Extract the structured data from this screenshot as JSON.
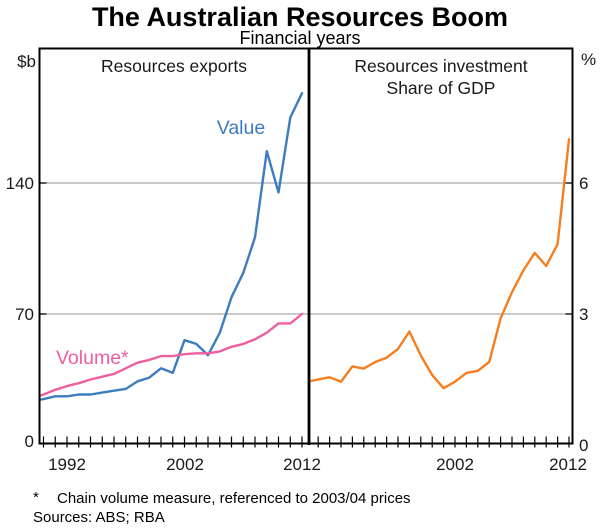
{
  "header": {
    "title": "The Australian Resources Boom",
    "subtitle": "Financial years"
  },
  "footer": {
    "footnote_marker": "*",
    "footnote_text": "Chain volume measure, referenced to 2003/04 prices",
    "sources": "Sources: ABS; RBA"
  },
  "chart_data": [
    {
      "type": "line",
      "panel": "left",
      "title": "Resources exports",
      "unit_label": "$b",
      "ylim": [
        0,
        210
      ],
      "grid": true,
      "y_ticks": [
        {
          "value": 140,
          "label": "140"
        },
        {
          "value": 70,
          "label": "70"
        },
        {
          "value": 0,
          "label": "0"
        }
      ],
      "x_range": {
        "start": 1990,
        "end": 2012,
        "tick_interval": 1
      },
      "x_tick_labels": [
        {
          "year": 1992,
          "label": "1992"
        },
        {
          "year": 2002,
          "label": "2002"
        },
        {
          "year": 2012,
          "label": "2012"
        }
      ],
      "years": [
        1989,
        1990,
        1991,
        1992,
        1993,
        1994,
        1995,
        1996,
        1997,
        1998,
        1999,
        2000,
        2001,
        2002,
        2003,
        2004,
        2005,
        2006,
        2007,
        2008,
        2009,
        2010,
        2011,
        2012
      ],
      "series": [
        {
          "name": "Value",
          "color": "#3d7cbf",
          "values": [
            23.5,
            24.5,
            26,
            26,
            27,
            27,
            28,
            29,
            30,
            34,
            36,
            41,
            38.5,
            56,
            54,
            48,
            60,
            79,
            92,
            111,
            157,
            135,
            175,
            188
          ]
        },
        {
          "name": "Volume*",
          "color": "#ee5fa0",
          "values": [
            25,
            27,
            29.5,
            31.5,
            33,
            35,
            36.5,
            38,
            41,
            44,
            45.5,
            47.5,
            47.5,
            48.5,
            49,
            49,
            50,
            52.5,
            54,
            56.5,
            60,
            65,
            65,
            70
          ]
        }
      ]
    },
    {
      "type": "line",
      "panel": "right",
      "title": "Resources investment",
      "subtitle": "Share of GDP",
      "unit_label": "%",
      "ylim": [
        0,
        9
      ],
      "grid": true,
      "y_ticks": [
        {
          "value": 6,
          "label": "6"
        },
        {
          "value": 3,
          "label": "3"
        },
        {
          "value": 0,
          "label": "0"
        }
      ],
      "x_range": {
        "start": 1990,
        "end": 2012,
        "tick_interval": 1
      },
      "x_tick_labels": [
        {
          "year": 2002,
          "label": "2002"
        },
        {
          "year": 2012,
          "label": "2012"
        }
      ],
      "years": [
        1989,
        1990,
        1991,
        1992,
        1993,
        1994,
        1995,
        1996,
        1997,
        1998,
        1999,
        2000,
        2001,
        2002,
        2003,
        2004,
        2005,
        2006,
        2007,
        2008,
        2009,
        2010,
        2011,
        2012
      ],
      "series": [
        {
          "name": "Resources investment share of GDP",
          "color": "#f57e20",
          "values": [
            1.45,
            1.5,
            1.55,
            1.45,
            1.8,
            1.75,
            1.9,
            2.0,
            2.2,
            2.6,
            2.05,
            1.6,
            1.3,
            1.45,
            1.65,
            1.7,
            1.9,
            2.9,
            3.5,
            4.0,
            4.4,
            4.1,
            4.6,
            7.0
          ]
        }
      ]
    }
  ]
}
